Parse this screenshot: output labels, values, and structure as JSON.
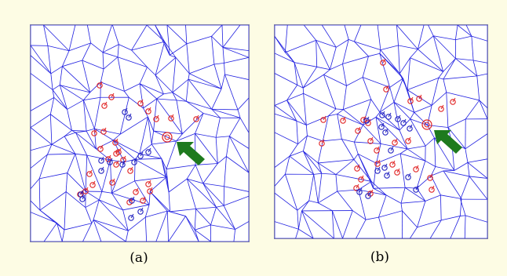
{
  "figure": {
    "panels": [
      {
        "id": "a",
        "caption": "(a)"
      },
      {
        "id": "b",
        "caption": "(b)"
      }
    ],
    "colors": {
      "background": "#fdfce4",
      "mesh": "#2020e0",
      "red_marker": "#e02020",
      "blue_marker": "#2020c0",
      "arrow": "#1e7a1e"
    },
    "icons": [
      "circle-marker",
      "arrow-icon"
    ]
  }
}
